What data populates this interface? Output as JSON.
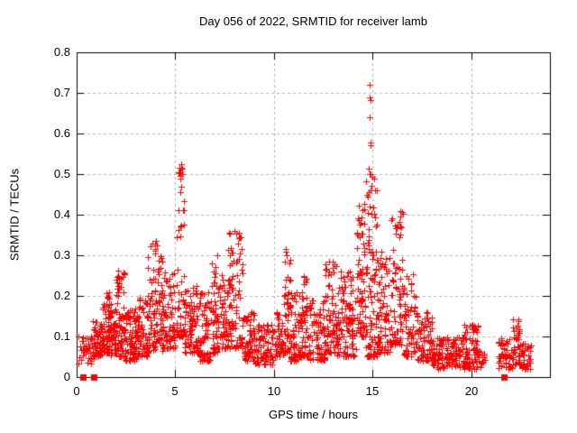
{
  "chart_data": {
    "type": "scatter",
    "title": "Day 056 of 2022, SRMTID for receiver lamb",
    "xlabel": "GPS time / hours",
    "ylabel": "SRMTID / TECUs",
    "xlim": [
      0,
      24
    ],
    "ylim": [
      0,
      0.8
    ],
    "xticks": [
      0,
      5,
      10,
      15,
      20
    ],
    "yticks": [
      0,
      0.1,
      0.2,
      0.3,
      0.4,
      0.5,
      0.6,
      0.7,
      0.8
    ],
    "grid": true,
    "legend": "none",
    "colors": {
      "marker": "#ff0000",
      "grid": "#b0b0b0",
      "axis": "#000000",
      "background": "#ffffff",
      "text": "#000000"
    },
    "series": [
      {
        "name": "SRMTID",
        "marker": "plus",
        "envelope_format": [
          "x_start_hr",
          "x_end_hr",
          "y_min_TECU",
          "y_max_TECU",
          "point_count",
          "bottom_bias_exponent"
        ],
        "envelope": [
          [
            0.05,
            0.35,
            0.03,
            0.1,
            8,
            1.0
          ],
          [
            0.3,
            0.8,
            0.03,
            0.1,
            30,
            1.2
          ],
          [
            0.8,
            1.3,
            0.05,
            0.14,
            60,
            1.3
          ],
          [
            1.3,
            1.7,
            0.06,
            0.21,
            60,
            1.5
          ],
          [
            1.7,
            2.0,
            0.05,
            0.18,
            45,
            1.3
          ],
          [
            2.0,
            2.45,
            0.05,
            0.27,
            70,
            1.8
          ],
          [
            2.45,
            3.0,
            0.04,
            0.17,
            70,
            1.4
          ],
          [
            3.0,
            3.6,
            0.05,
            0.2,
            75,
            1.5
          ],
          [
            3.6,
            4.35,
            0.06,
            0.33,
            95,
            1.7
          ],
          [
            4.35,
            5.0,
            0.07,
            0.26,
            75,
            1.6
          ],
          [
            5.05,
            5.45,
            0.1,
            0.53,
            55,
            2.2
          ],
          [
            5.45,
            6.2,
            0.06,
            0.23,
            85,
            1.5
          ],
          [
            6.2,
            6.8,
            0.04,
            0.22,
            70,
            1.5
          ],
          [
            6.8,
            7.15,
            0.06,
            0.3,
            45,
            1.8
          ],
          [
            7.15,
            7.7,
            0.07,
            0.26,
            60,
            1.5
          ],
          [
            7.7,
            8.45,
            0.07,
            0.36,
            85,
            1.7
          ],
          [
            8.45,
            9.0,
            0.04,
            0.16,
            60,
            1.3
          ],
          [
            9.0,
            10.0,
            0.03,
            0.13,
            85,
            1.3
          ],
          [
            10.0,
            10.45,
            0.05,
            0.16,
            45,
            1.3
          ],
          [
            10.45,
            10.85,
            0.06,
            0.32,
            45,
            2.0
          ],
          [
            10.85,
            11.4,
            0.04,
            0.22,
            60,
            1.5
          ],
          [
            11.4,
            11.75,
            0.05,
            0.25,
            45,
            1.6
          ],
          [
            11.75,
            12.6,
            0.04,
            0.19,
            80,
            1.4
          ],
          [
            12.6,
            13.15,
            0.06,
            0.285,
            65,
            1.7
          ],
          [
            13.15,
            14.2,
            0.05,
            0.26,
            110,
            1.5
          ],
          [
            14.2,
            14.65,
            0.1,
            0.45,
            70,
            1.7
          ],
          [
            14.65,
            15.25,
            0.05,
            0.5,
            100,
            1.9
          ],
          [
            15.25,
            15.95,
            0.06,
            0.31,
            75,
            1.6
          ],
          [
            15.95,
            16.55,
            0.08,
            0.42,
            70,
            1.7
          ],
          [
            16.55,
            17.2,
            0.05,
            0.26,
            60,
            1.5
          ],
          [
            17.2,
            18.05,
            0.04,
            0.16,
            75,
            1.3
          ],
          [
            18.05,
            19.6,
            0.02,
            0.1,
            120,
            1.2
          ],
          [
            19.6,
            20.4,
            0.02,
            0.13,
            75,
            1.4
          ],
          [
            20.4,
            20.7,
            0.02,
            0.07,
            12,
            1.2
          ],
          [
            21.35,
            22.1,
            0.02,
            0.1,
            50,
            1.3
          ],
          [
            22.1,
            22.5,
            0.03,
            0.145,
            40,
            1.5
          ],
          [
            22.5,
            23.05,
            0.02,
            0.09,
            40,
            1.3
          ]
        ],
        "peak_points": [
          [
            5.25,
            0.49
          ],
          [
            5.28,
            0.515
          ],
          [
            5.3,
            0.525
          ],
          [
            5.33,
            0.5
          ],
          [
            5.31,
            0.47
          ],
          [
            5.27,
            0.455
          ],
          [
            3.97,
            0.315
          ],
          [
            4.02,
            0.335
          ],
          [
            4.07,
            0.325
          ],
          [
            8.18,
            0.33
          ],
          [
            8.22,
            0.355
          ],
          [
            8.28,
            0.345
          ],
          [
            10.58,
            0.285
          ],
          [
            10.6,
            0.315
          ],
          [
            10.63,
            0.3
          ],
          [
            11.52,
            0.25
          ],
          [
            12.97,
            0.27
          ],
          [
            13.0,
            0.285
          ],
          [
            14.8,
            0.455
          ],
          [
            14.83,
            0.513
          ],
          [
            14.84,
            0.69
          ],
          [
            14.86,
            0.64
          ],
          [
            14.87,
            0.72
          ],
          [
            14.88,
            0.683
          ],
          [
            14.88,
            0.571
          ],
          [
            14.9,
            0.578
          ],
          [
            14.91,
            0.5
          ],
          [
            14.95,
            0.472
          ],
          [
            16.38,
            0.382
          ],
          [
            16.4,
            0.41
          ],
          [
            16.41,
            0.352
          ],
          [
            16.43,
            0.396
          ],
          [
            16.45,
            0.37
          ],
          [
            22.37,
            0.127
          ],
          [
            22.4,
            0.138
          ]
        ]
      },
      {
        "name": "zero-value markers",
        "marker": "filled-square",
        "points": [
          [
            0.3,
            0
          ],
          [
            0.85,
            0
          ],
          [
            21.65,
            0
          ]
        ]
      }
    ]
  }
}
